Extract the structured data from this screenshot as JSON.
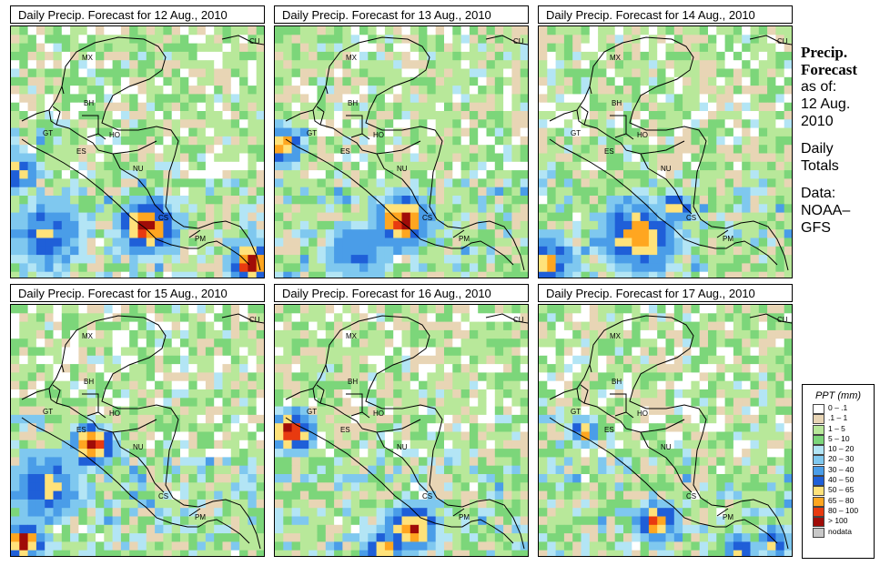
{
  "panels": [
    {
      "title": "Daily Precip. Forecast for  12 Aug., 2010",
      "seed": 12
    },
    {
      "title": "Daily Precip. Forecast for  13 Aug., 2010",
      "seed": 13
    },
    {
      "title": "Daily Precip. Forecast for  14 Aug., 2010",
      "seed": 14
    },
    {
      "title": "Daily Precip. Forecast for  15 Aug., 2010",
      "seed": 15
    },
    {
      "title": "Daily Precip. Forecast for  16 Aug., 2010",
      "seed": 16
    },
    {
      "title": "Daily Precip. Forecast for  17 Aug., 2010",
      "seed": 17
    }
  ],
  "country_labels": [
    "MX",
    "BH",
    "GT",
    "HO",
    "ES",
    "NU",
    "CS",
    "PM",
    "CU"
  ],
  "side": {
    "line1": "Precip.",
    "line2": "Forecast",
    "line3": "as of:",
    "line4": "12 Aug.",
    "line5": "2010",
    "line6": "Daily",
    "line7": "Totals",
    "line8": "Data:",
    "line9": "NOAA–",
    "line10": "GFS"
  },
  "legend": {
    "title": "PPT (mm)",
    "items": [
      {
        "label": "0 – .1",
        "color": "#ffffff"
      },
      {
        "label": ".1 – 1",
        "color": "#e8d5b5"
      },
      {
        "label": "1 – 5",
        "color": "#b8e89a"
      },
      {
        "label": "5 – 10",
        "color": "#7cd67a"
      },
      {
        "label": "10 – 20",
        "color": "#b3e5f5"
      },
      {
        "label": "20 – 30",
        "color": "#7fc8ef"
      },
      {
        "label": "30 – 40",
        "color": "#4a9de8"
      },
      {
        "label": "40 – 50",
        "color": "#1f5fd8"
      },
      {
        "label": "50 – 65",
        "color": "#ffe27a"
      },
      {
        "label": "65 – 80",
        "color": "#ffa620"
      },
      {
        "label": "80 – 100",
        "color": "#e83a10"
      },
      {
        "label": "> 100",
        "color": "#a00c08"
      },
      {
        "label": "nodata",
        "color": "#c8c8c8"
      }
    ]
  }
}
